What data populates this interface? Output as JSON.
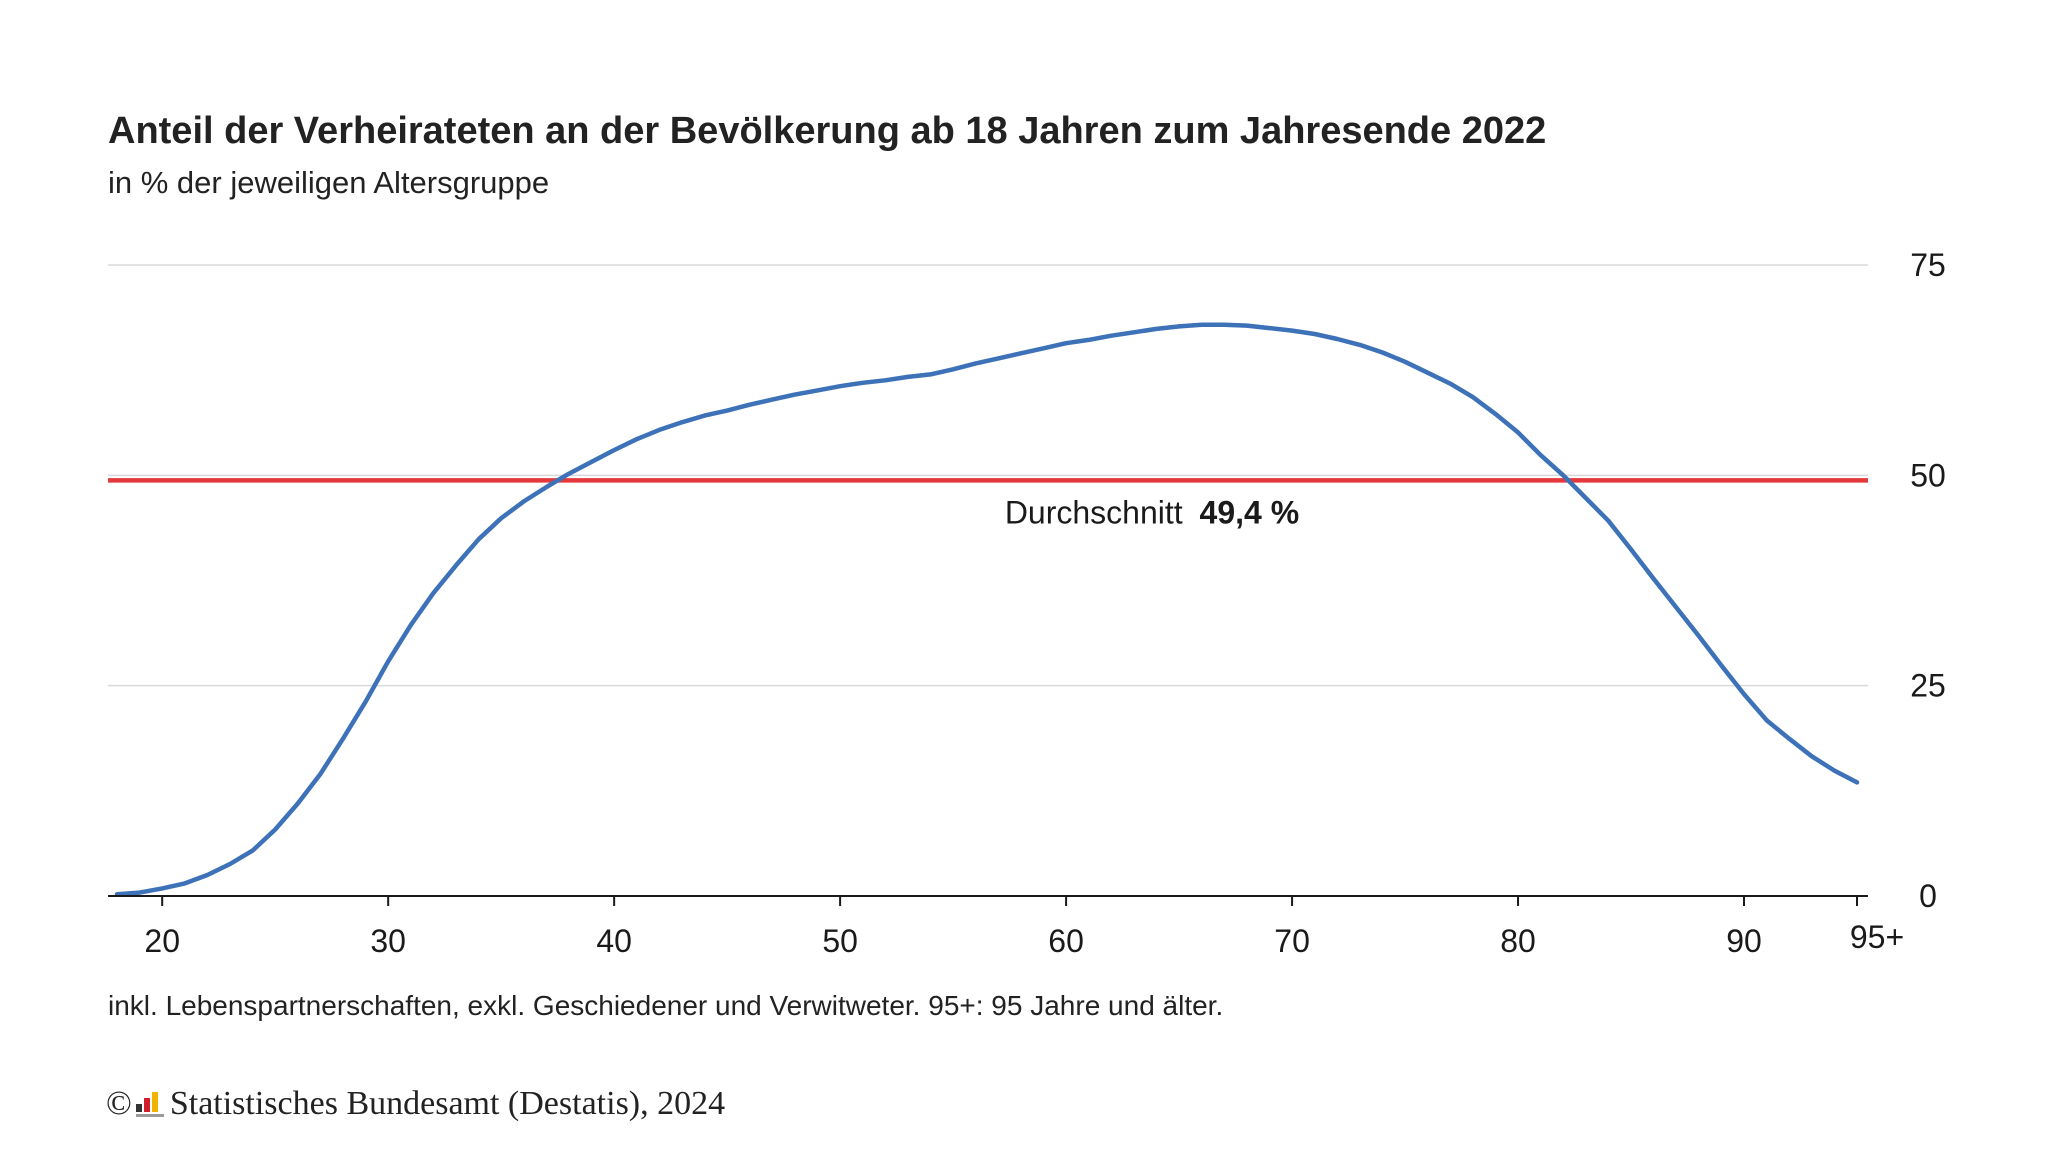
{
  "chart_data": {
    "type": "line",
    "title": "Anteil der Verheirateten an der Bevölkerung ab 18 Jahren zum Jahresende 2022",
    "subtitle": "in % der jeweiligen Altersgruppe",
    "xlabel": "",
    "ylabel": "",
    "xlim": [
      18,
      95
    ],
    "ylim": [
      0,
      75
    ],
    "grid": true,
    "y_axis_position": "right",
    "x_ticks": [
      {
        "value": 20,
        "label": "20"
      },
      {
        "value": 30,
        "label": "30"
      },
      {
        "value": 40,
        "label": "40"
      },
      {
        "value": 50,
        "label": "50"
      },
      {
        "value": 60,
        "label": "60"
      },
      {
        "value": 70,
        "label": "70"
      },
      {
        "value": 80,
        "label": "80"
      },
      {
        "value": 90,
        "label": "90"
      },
      {
        "value": 95,
        "label": "95+"
      }
    ],
    "y_ticks": [
      {
        "value": 0,
        "label": "0"
      },
      {
        "value": 25,
        "label": "25"
      },
      {
        "value": 50,
        "label": "50"
      },
      {
        "value": 75,
        "label": "75"
      }
    ],
    "series": [
      {
        "color": "#3d72b8",
        "x": [
          18,
          19,
          20,
          21,
          22,
          23,
          24,
          25,
          26,
          27,
          28,
          29,
          30,
          31,
          32,
          33,
          34,
          35,
          36,
          37,
          38,
          39,
          40,
          41,
          42,
          43,
          44,
          45,
          46,
          47,
          48,
          49,
          50,
          51,
          52,
          53,
          54,
          55,
          56,
          57,
          58,
          59,
          60,
          61,
          62,
          63,
          64,
          65,
          66,
          67,
          68,
          69,
          70,
          71,
          72,
          73,
          74,
          75,
          76,
          77,
          78,
          79,
          80,
          81,
          82,
          83,
          84,
          85,
          86,
          87,
          88,
          89,
          90,
          91,
          92,
          93,
          94,
          95
        ],
        "y": [
          0.2,
          0.4,
          0.9,
          1.5,
          2.5,
          3.8,
          5.4,
          7.9,
          11.0,
          14.5,
          18.7,
          23.1,
          27.9,
          32.2,
          36.0,
          39.3,
          42.4,
          44.9,
          46.9,
          48.6,
          50.2,
          51.6,
          53.0,
          54.3,
          55.4,
          56.3,
          57.1,
          57.7,
          58.4,
          59.0,
          59.6,
          60.1,
          60.6,
          61.0,
          61.3,
          61.7,
          62.0,
          62.6,
          63.3,
          63.9,
          64.5,
          65.1,
          65.7,
          66.1,
          66.6,
          67.0,
          67.4,
          67.7,
          67.9,
          67.9,
          67.8,
          67.5,
          67.2,
          66.8,
          66.2,
          65.5,
          64.6,
          63.5,
          62.2,
          60.9,
          59.3,
          57.3,
          55.1,
          52.4,
          50.0,
          47.3,
          44.6,
          41.2,
          37.7,
          34.3,
          30.9,
          27.4,
          24.0,
          20.9,
          18.7,
          16.6,
          14.9,
          13.5
        ]
      }
    ],
    "reference_line": {
      "value": 49.4,
      "color": "#e5383b",
      "label_prefix": "Durchschnitt",
      "label_value": "49,4 %"
    }
  },
  "footnote": "inkl. Lebenspartnerschaften, exkl. Geschiedener und Verwitweter. 95+: 95 Jahre und älter.",
  "source": {
    "copyright": "©",
    "logo_icon": "destatis-logo-icon",
    "text": "Statistisches Bundesamt (Destatis), 2024"
  }
}
